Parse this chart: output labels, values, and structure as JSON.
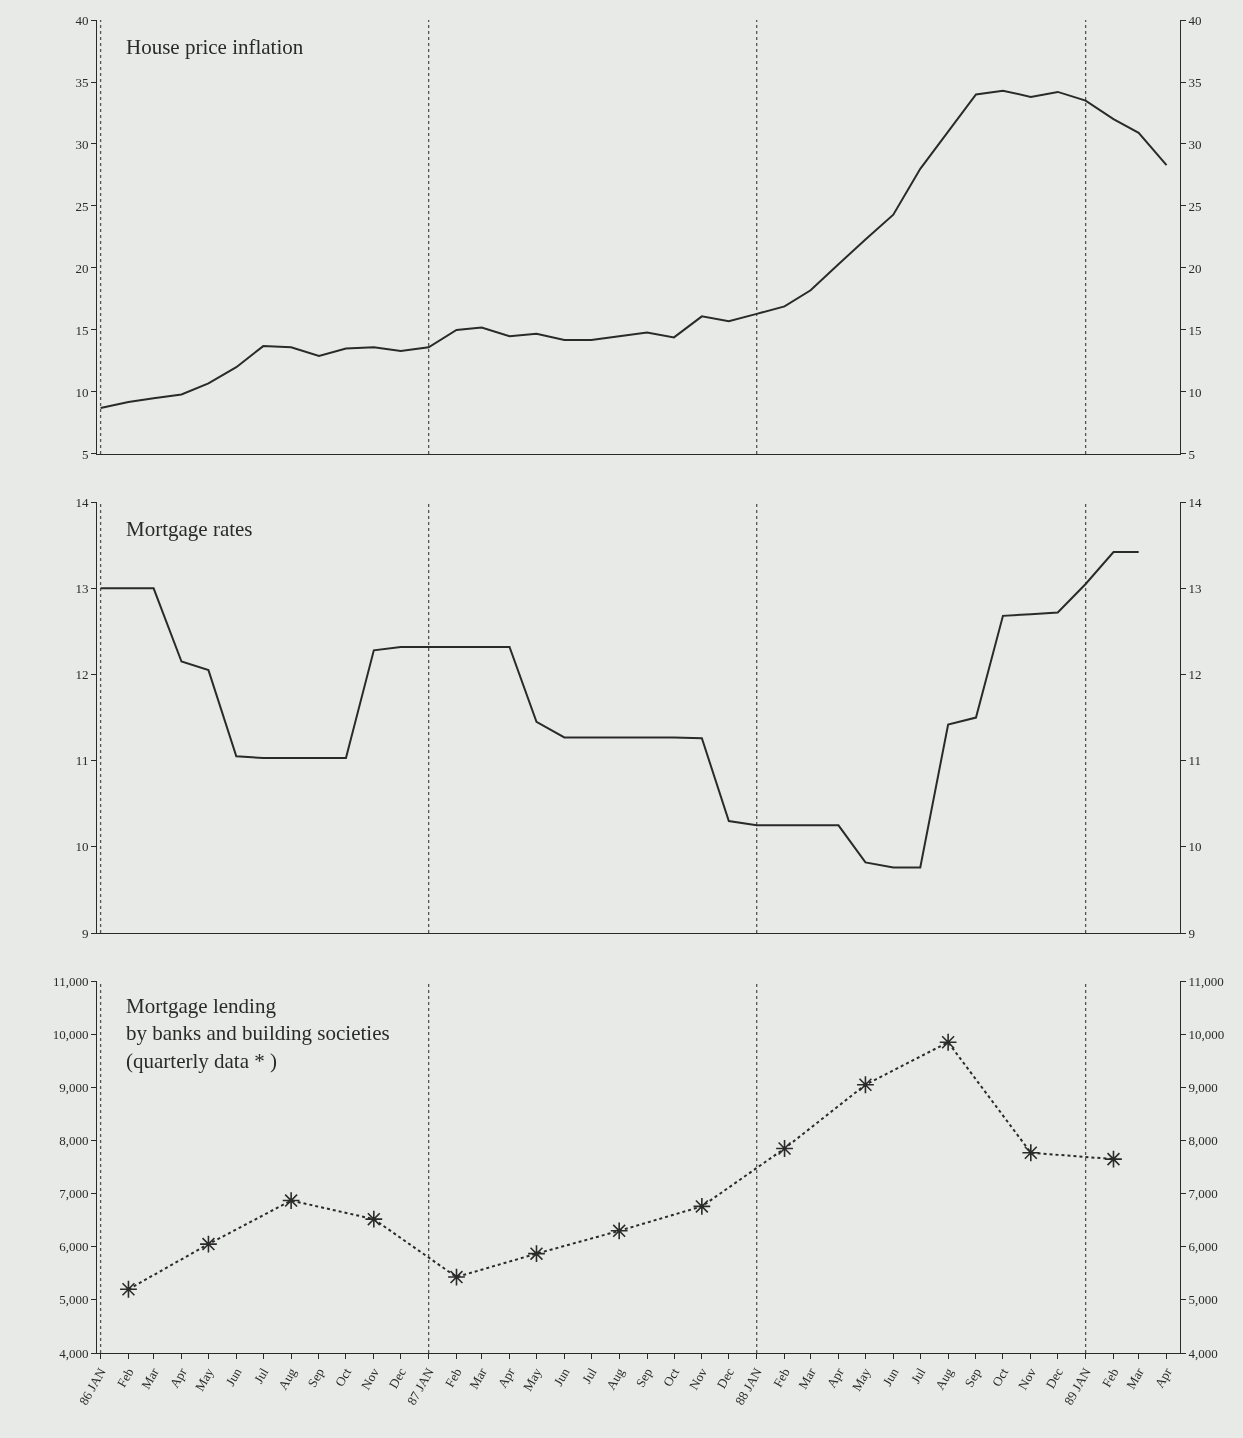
{
  "chart_data": [
    {
      "type": "line",
      "title": "House price inflation",
      "x": [
        "1986-01",
        "1986-02",
        "1986-03",
        "1986-04",
        "1986-05",
        "1986-06",
        "1986-07",
        "1986-08",
        "1986-09",
        "1986-10",
        "1986-11",
        "1986-12",
        "1987-01",
        "1987-02",
        "1987-03",
        "1987-04",
        "1987-05",
        "1987-06",
        "1987-07",
        "1987-08",
        "1987-09",
        "1987-10",
        "1987-11",
        "1987-12",
        "1988-01",
        "1988-02",
        "1988-03",
        "1988-04",
        "1988-05",
        "1988-06",
        "1988-07",
        "1988-08",
        "1988-09",
        "1988-10",
        "1988-11",
        "1988-12",
        "1989-01",
        "1989-02",
        "1989-03",
        "1989-04"
      ],
      "series": [
        {
          "color": "#2a2a2a",
          "values": [
            8.7,
            9.2,
            9.5,
            9.8,
            10.7,
            12.0,
            13.7,
            13.6,
            12.9,
            13.5,
            13.6,
            13.3,
            13.6,
            15.0,
            15.2,
            14.5,
            14.7,
            14.2,
            14.2,
            14.5,
            14.8,
            14.4,
            16.1,
            15.7,
            16.3,
            16.9,
            18.2,
            20.3,
            22.3,
            24.3,
            28.0,
            31.0,
            34.0,
            34.3,
            33.8,
            34.2,
            33.5,
            32.0,
            30.9,
            28.3
          ]
        }
      ],
      "xlim": [
        "1985-12-28",
        "1989-04-16"
      ],
      "ylim": [
        5,
        40
      ],
      "yticks": [
        5,
        10,
        15,
        20,
        25,
        30,
        35,
        40
      ],
      "y2lim": [
        5,
        40
      ],
      "y2ticks": [
        5,
        10,
        15,
        20,
        25,
        30,
        35,
        40
      ],
      "ref_lines": [
        {
          "axis": "x",
          "value": "1986-01",
          "color": "#555555",
          "line_style": "dotted"
        },
        {
          "axis": "x",
          "value": "1987-01",
          "color": "#555555",
          "line_style": "dotted"
        },
        {
          "axis": "x",
          "value": "1988-01",
          "color": "#555555",
          "line_style": "dotted"
        },
        {
          "axis": "x",
          "value": "1989-01",
          "color": "#555555",
          "line_style": "dotted"
        }
      ],
      "tick_labels": "y",
      "grid": false,
      "line_style": "solid"
    },
    {
      "type": "line",
      "title": "Mortgage rates",
      "series": [
        {
          "color": "#2a2a2a",
          "values": [
            13.0,
            13.0,
            13.0,
            12.15,
            12.05,
            11.05,
            11.03,
            11.03,
            11.03,
            11.03,
            12.28,
            12.32,
            12.32,
            12.32,
            12.32,
            12.32,
            11.45,
            11.27,
            11.27,
            11.27,
            11.27,
            11.27,
            11.26,
            10.3,
            10.25,
            10.25,
            10.25,
            10.25,
            9.82,
            9.76,
            9.76,
            11.42,
            11.5,
            12.68,
            12.7,
            12.72,
            13.05,
            13.42,
            13.42
          ],
          "x": [
            "1986-01",
            "1986-02",
            "1986-03",
            "1986-04",
            "1986-05",
            "1986-06",
            "1986-07",
            "1986-08",
            "1986-09",
            "1986-10",
            "1986-11",
            "1986-12",
            "1987-01",
            "1987-02",
            "1987-03",
            "1987-04",
            "1987-05",
            "1987-06",
            "1987-07",
            "1987-08",
            "1987-09",
            "1987-10",
            "1987-11",
            "1987-12",
            "1988-01",
            "1988-02",
            "1988-03",
            "1988-04",
            "1988-05",
            "1988-06",
            "1988-07",
            "1988-08",
            "1988-09",
            "1988-10",
            "1988-11",
            "1988-12",
            "1989-01",
            "1989-02",
            "1989-03"
          ]
        }
      ],
      "xlim": [
        "1985-12-28",
        "1989-04-16"
      ],
      "ylim": [
        9,
        14
      ],
      "yticks": [
        9,
        10,
        11,
        12,
        13,
        14
      ],
      "y2lim": [
        9,
        14
      ],
      "y2ticks": [
        9,
        10,
        11,
        12,
        13,
        14
      ],
      "ref_lines": [
        {
          "axis": "x",
          "value": "1986-01",
          "color": "#555555",
          "line_style": "dotted"
        },
        {
          "axis": "x",
          "value": "1987-01",
          "color": "#555555",
          "line_style": "dotted"
        },
        {
          "axis": "x",
          "value": "1988-01",
          "color": "#555555",
          "line_style": "dotted"
        },
        {
          "axis": "x",
          "value": "1989-01",
          "color": "#555555",
          "line_style": "dotted"
        }
      ],
      "tick_labels": "y",
      "grid": false,
      "line_style": "solid"
    },
    {
      "type": "line",
      "title": "Mortgage lending\nby banks and building societies\n(quarterly data * )",
      "x": [
        "1986-02",
        "1986-05",
        "1986-08",
        "1986-11",
        "1987-02",
        "1987-05",
        "1987-08",
        "1987-11",
        "1988-02",
        "1988-05",
        "1988-08",
        "1988-11",
        "1989-02"
      ],
      "series": [
        {
          "color": "#2a2a2a",
          "values": [
            5200,
            6050,
            6870,
            6520,
            5430,
            5870,
            6300,
            6760,
            7850,
            9050,
            9850,
            7770,
            7650
          ]
        }
      ],
      "xlim": [
        "1985-12-28",
        "1989-04-16"
      ],
      "xticks": [
        {
          "value": "1986-01",
          "label": "86 JAN"
        },
        {
          "value": "1986-02",
          "label": "Feb"
        },
        {
          "value": "1986-03",
          "label": "Mar"
        },
        {
          "value": "1986-04",
          "label": "Apr"
        },
        {
          "value": "1986-05",
          "label": "May"
        },
        {
          "value": "1986-06",
          "label": "Jun"
        },
        {
          "value": "1986-07",
          "label": "Jul"
        },
        {
          "value": "1986-08",
          "label": "Aug"
        },
        {
          "value": "1986-09",
          "label": "Sep"
        },
        {
          "value": "1986-10",
          "label": "Oct"
        },
        {
          "value": "1986-11",
          "label": "Nov"
        },
        {
          "value": "1986-12",
          "label": "Dec"
        },
        {
          "value": "1987-01",
          "label": "87 JAN"
        },
        {
          "value": "1987-02",
          "label": "Feb"
        },
        {
          "value": "1987-03",
          "label": "Mar"
        },
        {
          "value": "1987-04",
          "label": "Apr"
        },
        {
          "value": "1987-05",
          "label": "May"
        },
        {
          "value": "1987-06",
          "label": "Jun"
        },
        {
          "value": "1987-07",
          "label": "Jul"
        },
        {
          "value": "1987-08",
          "label": "Aug"
        },
        {
          "value": "1987-09",
          "label": "Sep"
        },
        {
          "value": "1987-10",
          "label": "Oct"
        },
        {
          "value": "1987-11",
          "label": "Nov"
        },
        {
          "value": "1987-12",
          "label": "Dec"
        },
        {
          "value": "1988-01",
          "label": "88 JAN"
        },
        {
          "value": "1988-02",
          "label": "Feb"
        },
        {
          "value": "1988-03",
          "label": "Mar"
        },
        {
          "value": "1988-04",
          "label": "Apr"
        },
        {
          "value": "1988-05",
          "label": "May"
        },
        {
          "value": "1988-06",
          "label": "Jun"
        },
        {
          "value": "1988-07",
          "label": "Jul"
        },
        {
          "value": "1988-08",
          "label": "Aug"
        },
        {
          "value": "1988-09",
          "label": "Sep"
        },
        {
          "value": "1988-10",
          "label": "Oct"
        },
        {
          "value": "1988-11",
          "label": "Nov"
        },
        {
          "value": "1988-12",
          "label": "Dec"
        },
        {
          "value": "1989-01",
          "label": "89 JAN"
        },
        {
          "value": "1989-02",
          "label": "Feb"
        },
        {
          "value": "1989-03",
          "label": "Mar"
        },
        {
          "value": "1989-04",
          "label": "Apr"
        }
      ],
      "ylim": [
        4000,
        11000
      ],
      "yticks": [
        {
          "value": 4000,
          "label": "4,000"
        },
        {
          "value": 5000,
          "label": "5,000"
        },
        {
          "value": 6000,
          "label": "6,000"
        },
        {
          "value": 7000,
          "label": "7,000"
        },
        {
          "value": 8000,
          "label": "8,000"
        },
        {
          "value": 9000,
          "label": "9,000"
        },
        {
          "value": 10000,
          "label": "10,000"
        },
        {
          "value": 11000,
          "label": "11,000"
        }
      ],
      "y2lim": [
        4000,
        11000
      ],
      "y2ticks": [
        {
          "value": 4000,
          "label": "4,000"
        },
        {
          "value": 5000,
          "label": "5,000"
        },
        {
          "value": 6000,
          "label": "6,000"
        },
        {
          "value": 7000,
          "label": "7,000"
        },
        {
          "value": 8000,
          "label": "8,000"
        },
        {
          "value": 9000,
          "label": "9,000"
        },
        {
          "value": 10000,
          "label": "10,000"
        },
        {
          "value": 11000,
          "label": "11,000"
        }
      ],
      "ref_lines": [
        {
          "axis": "x",
          "value": "1986-01",
          "color": "#555555",
          "line_style": "dotted"
        },
        {
          "axis": "x",
          "value": "1987-01",
          "color": "#555555",
          "line_style": "dotted"
        },
        {
          "axis": "x",
          "value": "1988-01",
          "color": "#555555",
          "line_style": "dotted"
        },
        {
          "axis": "x",
          "value": "1989-01",
          "color": "#555555",
          "line_style": "dotted"
        }
      ],
      "grid": false,
      "marker": "cross",
      "line_style": "dotted"
    }
  ]
}
